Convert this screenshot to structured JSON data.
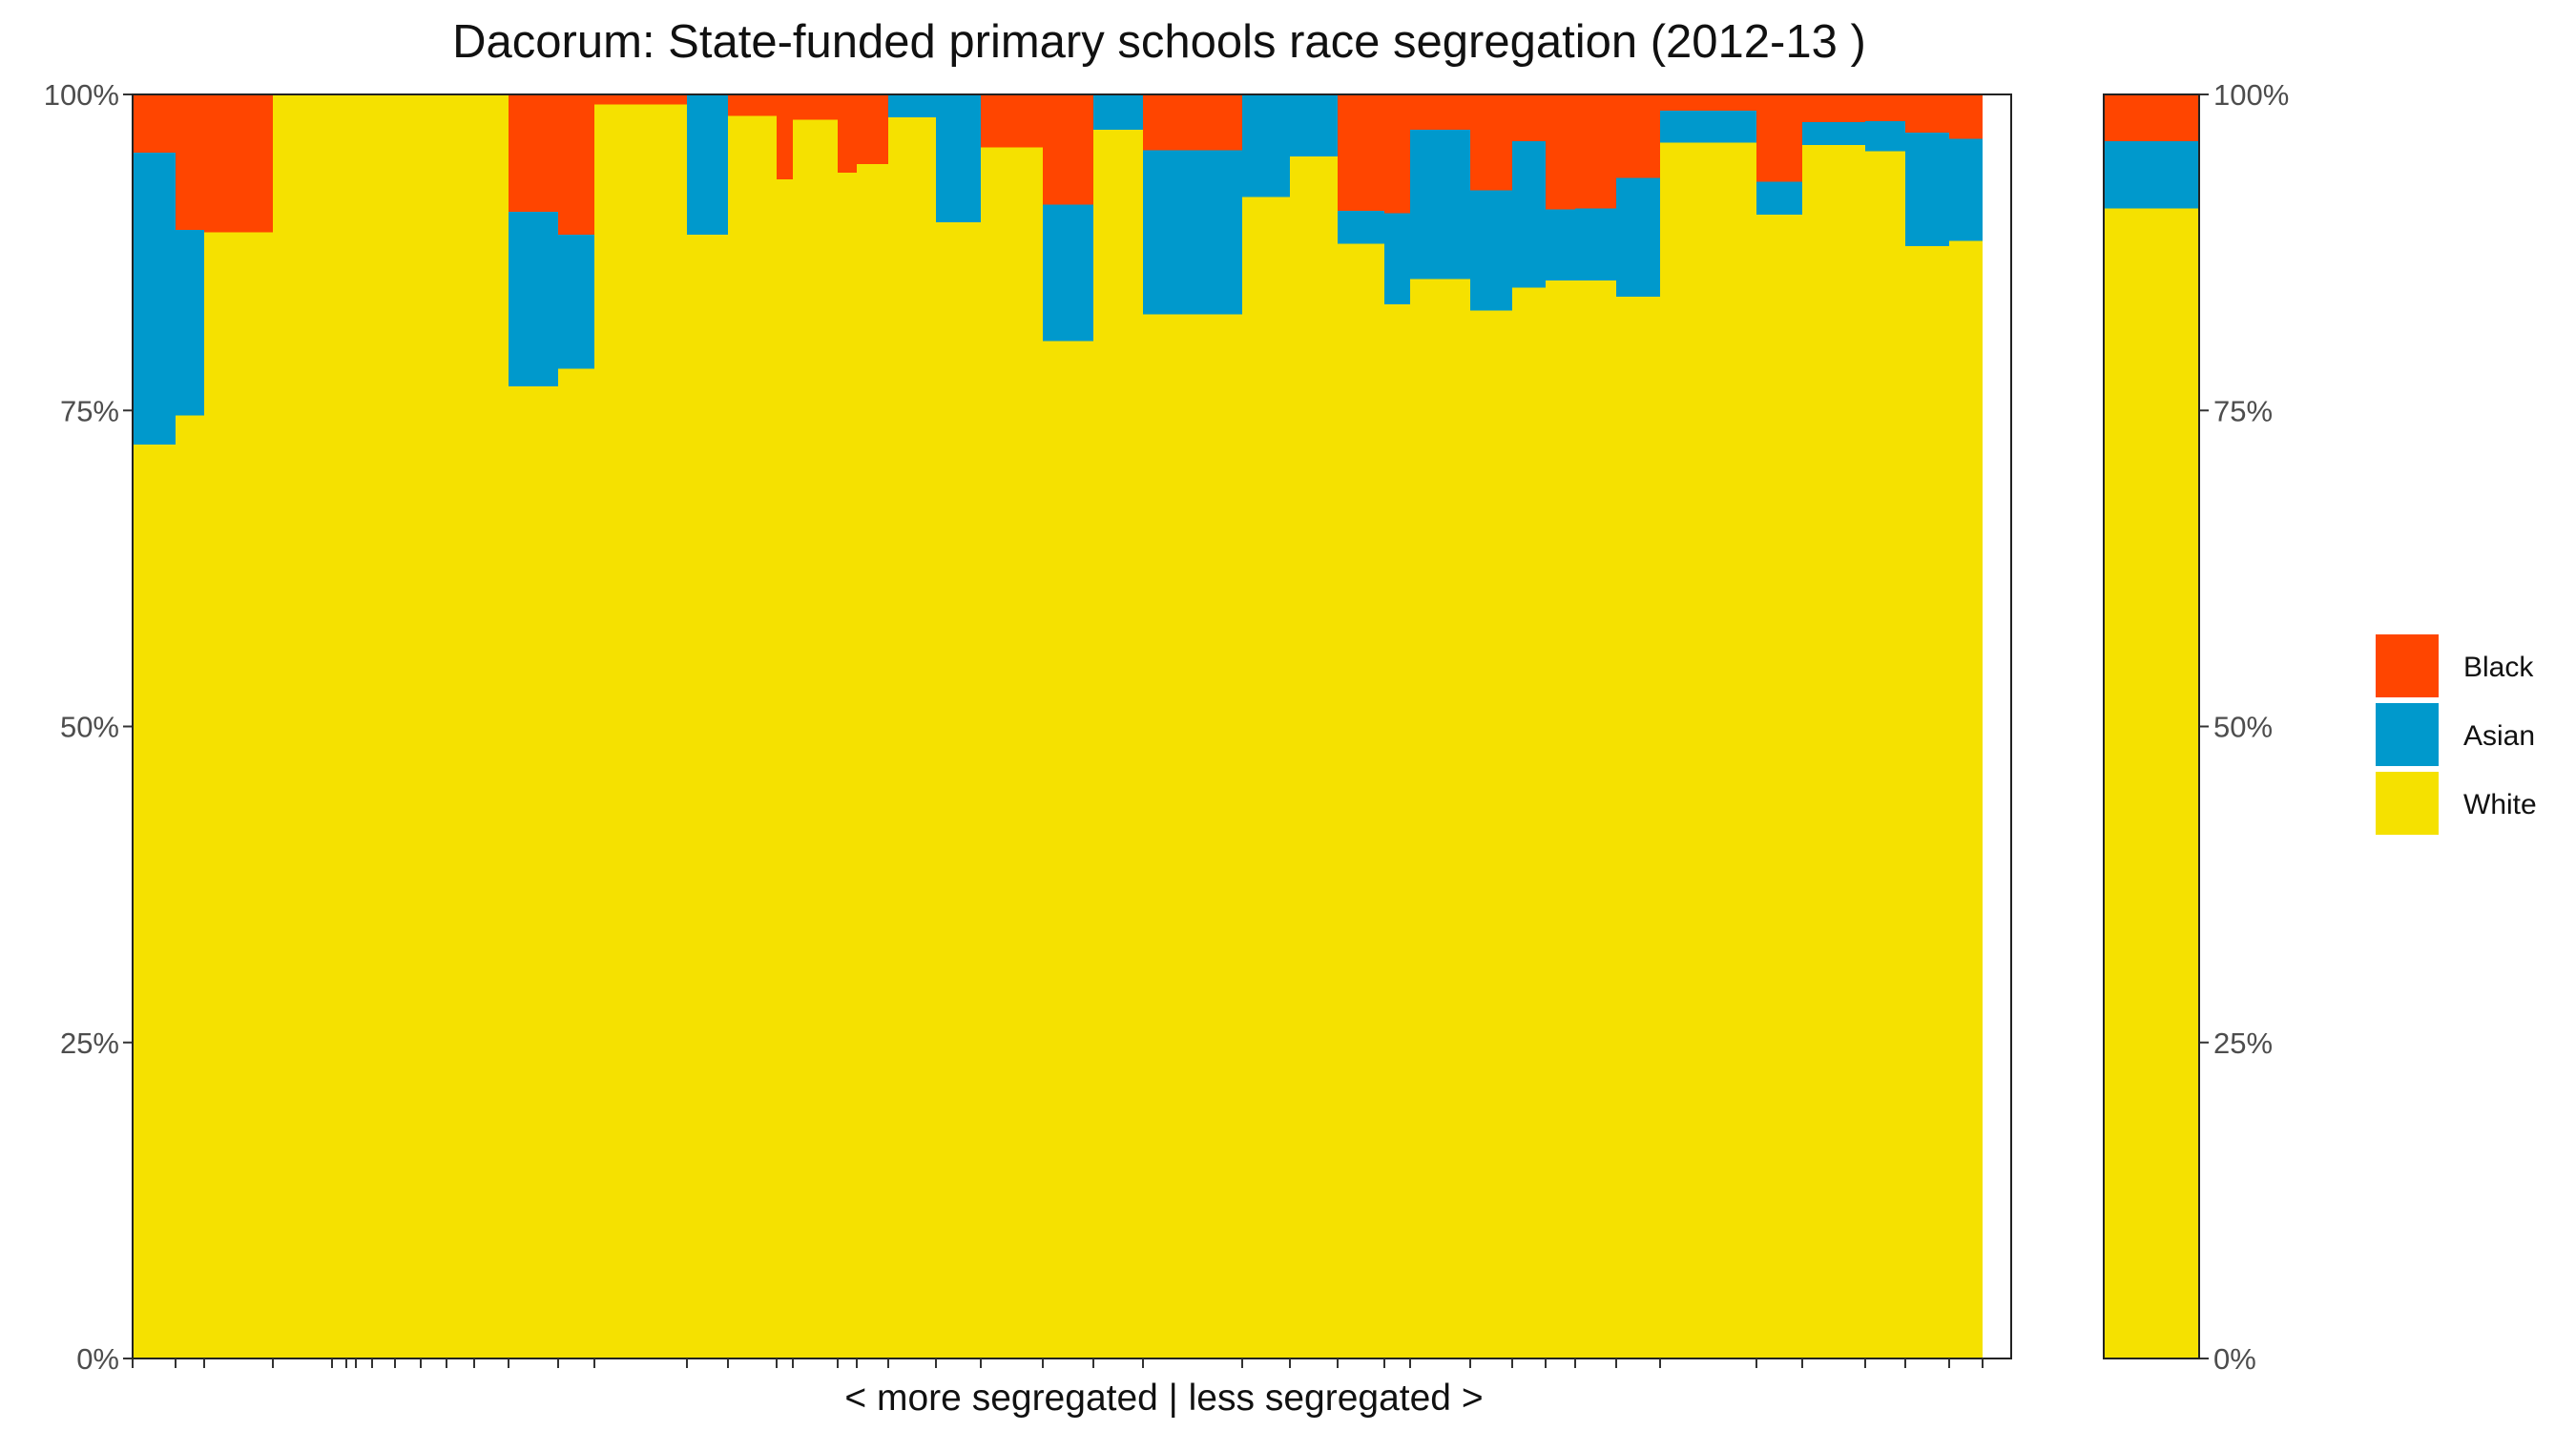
{
  "chart_data": {
    "type": "bar",
    "title": "Dacorum: State-funded primary schools race segregation (2012-13 )",
    "xlabel": "< more segregated | less segregated >",
    "ylabel": "",
    "ylim": [
      0,
      1
    ],
    "y_ticks": [
      "0%",
      "25%",
      "50%",
      "75%",
      "100%"
    ],
    "legend_position": "right",
    "series_order": [
      "Black",
      "Asian",
      "White"
    ],
    "colors": {
      "Black": "#FF4500",
      "Asian": "#0099CC",
      "White": "#F5E100"
    },
    "legend": [
      {
        "name": "Black",
        "color": "#FF4500"
      },
      {
        "name": "Asian",
        "color": "#0099CC"
      },
      {
        "name": "White",
        "color": "#F5E100"
      }
    ],
    "schools": [
      {
        "width": 45,
        "white": 0.723,
        "asian": 0.231
      },
      {
        "width": 30,
        "white": 0.746,
        "asian": 0.147
      },
      {
        "width": 72,
        "white": 0.891,
        "asian": 0.0
      },
      {
        "width": 62,
        "white": 1.0,
        "asian": 0.0
      },
      {
        "width": 15,
        "white": 1.0,
        "asian": 0.0
      },
      {
        "width": 10,
        "white": 1.0,
        "asian": 0.0
      },
      {
        "width": 17,
        "white": 1.0,
        "asian": 0.0
      },
      {
        "width": 24,
        "white": 1.0,
        "asian": 0.0
      },
      {
        "width": 27,
        "white": 1.0,
        "asian": 0.0
      },
      {
        "width": 27,
        "white": 1.0,
        "asian": 0.0
      },
      {
        "width": 29,
        "white": 1.0,
        "asian": 0.0
      },
      {
        "width": 36,
        "white": 1.0,
        "asian": 0.0
      },
      {
        "width": 52,
        "white": 0.769,
        "asian": 0.138
      },
      {
        "width": 38,
        "white": 0.783,
        "asian": 0.106
      },
      {
        "width": 97,
        "white": 0.992,
        "asian": 0.0
      },
      {
        "width": 43,
        "white": 0.889,
        "asian": 0.111
      },
      {
        "width": 51,
        "white": 0.983,
        "asian": 0.0
      },
      {
        "width": 17,
        "white": 0.933,
        "asian": 0.0
      },
      {
        "width": 47,
        "white": 0.98,
        "asian": 0.0
      },
      {
        "width": 20,
        "white": 0.938,
        "asian": 0.0
      },
      {
        "width": 33,
        "white": 0.945,
        "asian": 0.0
      },
      {
        "width": 50,
        "white": 0.982,
        "asian": 0.018
      },
      {
        "width": 47,
        "white": 0.899,
        "asian": 0.101
      },
      {
        "width": 65,
        "white": 0.958,
        "asian": 0.0
      },
      {
        "width": 53,
        "white": 0.805,
        "asian": 0.108
      },
      {
        "width": 52,
        "white": 0.972,
        "asian": 0.028
      },
      {
        "width": 104,
        "white": 0.826,
        "asian": 0.13
      },
      {
        "width": 50,
        "white": 0.919,
        "asian": 0.081
      },
      {
        "width": 50,
        "white": 0.951,
        "asian": 0.049
      },
      {
        "width": 49,
        "white": 0.882,
        "asian": 0.026
      },
      {
        "width": 27,
        "white": 0.834,
        "asian": 0.072
      },
      {
        "width": 63,
        "white": 0.854,
        "asian": 0.118
      },
      {
        "width": 44,
        "white": 0.829,
        "asian": 0.095
      },
      {
        "width": 35,
        "white": 0.847,
        "asian": 0.116
      },
      {
        "width": 31,
        "white": 0.853,
        "asian": 0.056
      },
      {
        "width": 43,
        "white": 0.853,
        "asian": 0.057
      },
      {
        "width": 46,
        "white": 0.84,
        "asian": 0.094
      },
      {
        "width": 101,
        "white": 0.962,
        "asian": 0.025
      },
      {
        "width": 48,
        "white": 0.905,
        "asian": 0.026
      },
      {
        "width": 66,
        "white": 0.96,
        "asian": 0.018
      },
      {
        "width": 42,
        "white": 0.955,
        "asian": 0.024
      },
      {
        "width": 46,
        "white": 0.88,
        "asian": 0.09
      },
      {
        "width": 35,
        "white": 0.884,
        "asian": 0.081
      }
    ],
    "overall": {
      "white": 0.91,
      "asian": 0.053
    }
  }
}
